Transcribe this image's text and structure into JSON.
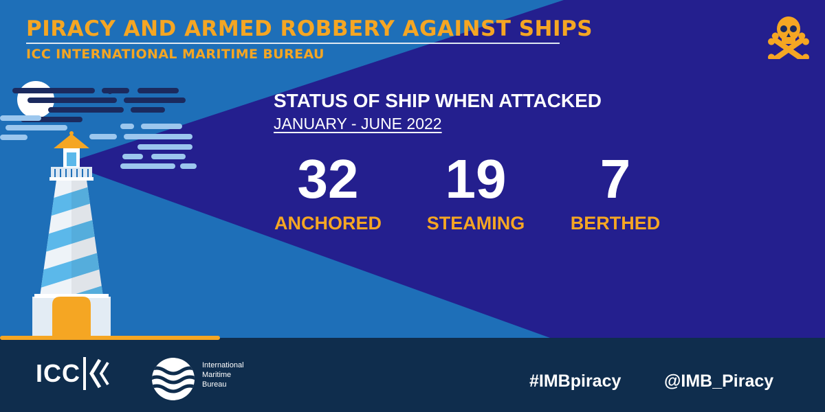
{
  "header": {
    "title": "PIRACY AND ARMED ROBBERY AGAINST SHIPS",
    "subtitle": "ICC INTERNATIONAL MARITIME BUREAU"
  },
  "main": {
    "heading": "STATUS OF SHIP WHEN ATTACKED",
    "period": "JANUARY - JUNE 2022",
    "stats": [
      {
        "value": "32",
        "label": "ANCHORED"
      },
      {
        "value": "19",
        "label": "STEAMING"
      },
      {
        "value": "7",
        "label": "BERTHED"
      }
    ]
  },
  "footer": {
    "icc_logo_text": "ICC",
    "imb_logo_lines": [
      "International",
      "Maritime",
      "Bureau"
    ],
    "hashtag": "#IMBpiracy",
    "handle": "@IMB_Piracy"
  },
  "icons": {
    "corner": "skull-crossbones-icon",
    "illustration": "lighthouse-icon",
    "moon": "moon-icon"
  },
  "colors": {
    "background_blue": "#1e6fb8",
    "beam_navy": "#241f8e",
    "accent_orange": "#f5a623",
    "footer_navy": "#0f2d4d"
  }
}
